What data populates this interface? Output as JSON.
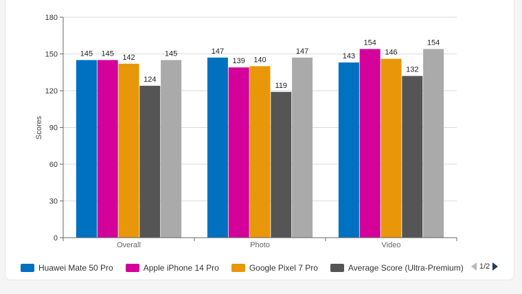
{
  "chart_data": {
    "type": "bar",
    "title": "",
    "xlabel": "",
    "ylabel": "Scores",
    "ylim": [
      0,
      180
    ],
    "yticks": [
      0,
      30,
      60,
      90,
      120,
      150,
      180
    ],
    "categories": [
      "Overall",
      "Photo",
      "Video"
    ],
    "grid": "horizontal",
    "legend_position": "bottom",
    "series": [
      {
        "name": "Huawei Mate 50 Pro",
        "color": "#0070c0",
        "values": [
          145,
          147,
          143
        ]
      },
      {
        "name": "Apple iPhone 14 Pro",
        "color": "#d4009a",
        "values": [
          145,
          139,
          154
        ]
      },
      {
        "name": "Google Pixel 7 Pro",
        "color": "#e8960a",
        "values": [
          142,
          140,
          146
        ]
      },
      {
        "name": "Average Score (Ultra-Premium)",
        "color": "#555555",
        "values": [
          124,
          119,
          132
        ]
      },
      {
        "name": "",
        "color": "#aaaaaa",
        "values": [
          145,
          147,
          154
        ]
      }
    ]
  },
  "legend": {
    "items": [
      {
        "label": "Huawei Mate 50 Pro",
        "color": "#0070c0"
      },
      {
        "label": "Apple iPhone 14 Pro",
        "color": "#d4009a"
      },
      {
        "label": "Google Pixel 7 Pro",
        "color": "#e8960a"
      },
      {
        "label": "Average Score (Ultra-Premium)",
        "color": "#555555"
      }
    ],
    "page": "1/2"
  }
}
